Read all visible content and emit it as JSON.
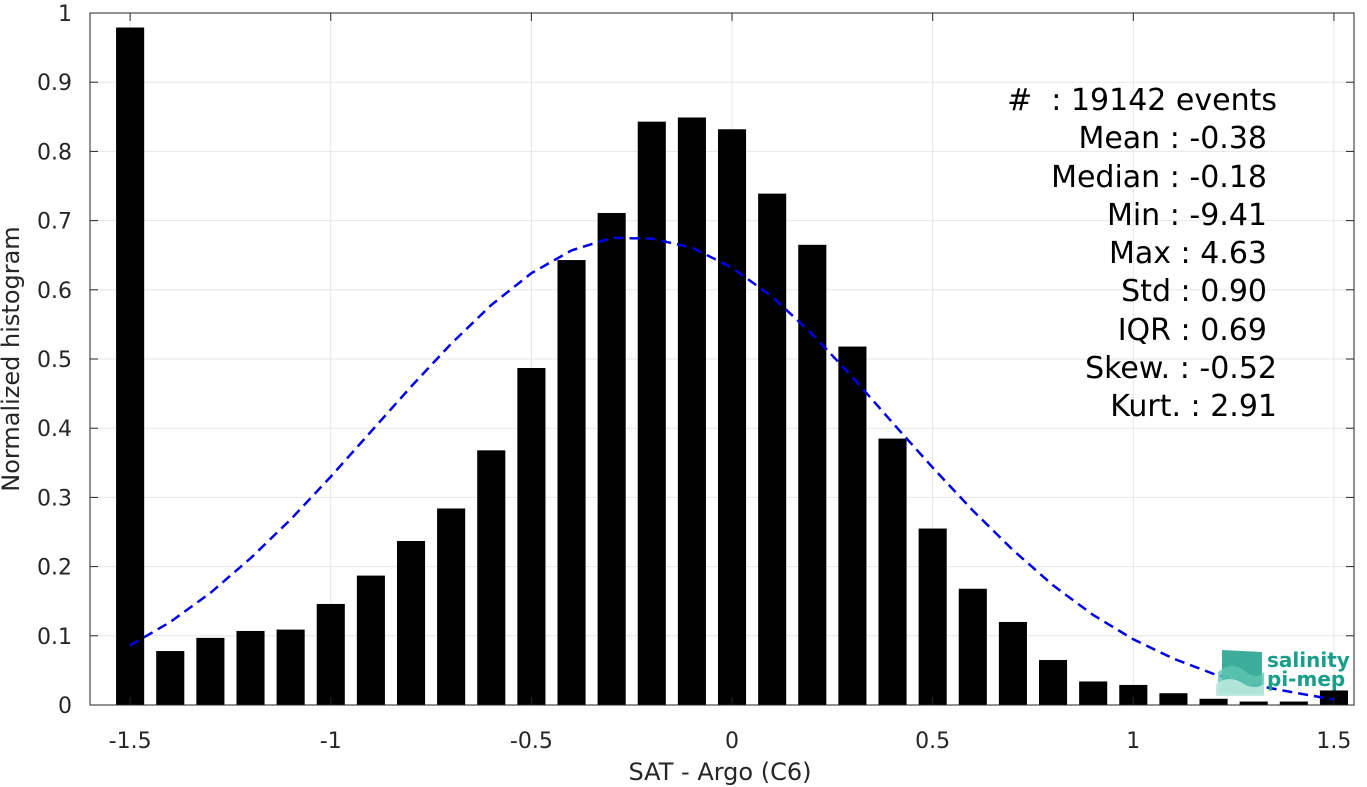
{
  "chart_data": {
    "type": "bar",
    "xlabel": "SAT - Argo (C6)",
    "ylabel": "Normalized histogram",
    "xlim": [
      -1.6,
      1.55
    ],
    "ylim": [
      0,
      1
    ],
    "x_ticks": [
      -1.5,
      -1,
      -0.5,
      0,
      0.5,
      1,
      1.5
    ],
    "x_tick_labels": [
      "-1.5",
      "-1",
      "-0.5",
      "0",
      "0.5",
      "1",
      "1.5"
    ],
    "y_ticks": [
      0,
      0.1,
      0.2,
      0.3,
      0.4,
      0.5,
      0.6,
      0.7,
      0.8,
      0.9,
      1
    ],
    "y_tick_labels": [
      "0",
      "0.1",
      "0.2",
      "0.3",
      "0.4",
      "0.5",
      "0.6",
      "0.7",
      "0.8",
      "0.9",
      "1"
    ],
    "grid": true,
    "bar_width": 0.07,
    "bar_color": "#000000",
    "bars": {
      "x": [
        -1.5,
        -1.4,
        -1.3,
        -1.2,
        -1.1,
        -1.0,
        -0.9,
        -0.8,
        -0.7,
        -0.6,
        -0.5,
        -0.4,
        -0.3,
        -0.2,
        -0.1,
        0.0,
        0.1,
        0.2,
        0.3,
        0.4,
        0.5,
        0.6,
        0.7,
        0.8,
        0.9,
        1.0,
        1.1,
        1.2,
        1.3,
        1.4,
        1.5
      ],
      "values": [
        0.979,
        0.078,
        0.097,
        0.107,
        0.109,
        0.146,
        0.187,
        0.237,
        0.284,
        0.368,
        0.487,
        0.643,
        0.711,
        0.843,
        0.849,
        0.832,
        0.739,
        0.665,
        0.518,
        0.385,
        0.255,
        0.168,
        0.12,
        0.065,
        0.034,
        0.029,
        0.017,
        0.009,
        0.005,
        0.005,
        0.021
      ]
    },
    "fit_curve": {
      "style": "dashed",
      "color": "#0000e6",
      "x": [
        -1.5,
        -1.4,
        -1.3,
        -1.2,
        -1.1,
        -1.0,
        -0.9,
        -0.8,
        -0.7,
        -0.6,
        -0.5,
        -0.4,
        -0.3,
        -0.2,
        -0.1,
        0.0,
        0.1,
        0.2,
        0.3,
        0.4,
        0.5,
        0.6,
        0.7,
        0.8,
        0.9,
        1.0,
        1.1,
        1.2,
        1.3,
        1.4,
        1.5
      ],
      "y": [
        0.086,
        0.12,
        0.162,
        0.212,
        0.268,
        0.33,
        0.395,
        0.46,
        0.522,
        0.578,
        0.624,
        0.657,
        0.675,
        0.674,
        0.661,
        0.632,
        0.59,
        0.536,
        0.474,
        0.408,
        0.343,
        0.281,
        0.224,
        0.173,
        0.13,
        0.095,
        0.067,
        0.045,
        0.029,
        0.018,
        0.008
      ]
    }
  },
  "stats": {
    "lines": [
      "#  : 19142 events",
      "Mean : -0.38",
      "Median : -0.18",
      "Min : -9.41",
      "Max : 4.63",
      "Std : 0.90",
      "IQR : 0.69",
      "Skew. : -0.52",
      "Kurt. : 2.91"
    ]
  },
  "logo": {
    "line1": "salinity",
    "line2": "pi-mep",
    "color": "#1a9e8a"
  },
  "colors": {
    "grid": "#e6e6e6",
    "axis": "#262626"
  }
}
